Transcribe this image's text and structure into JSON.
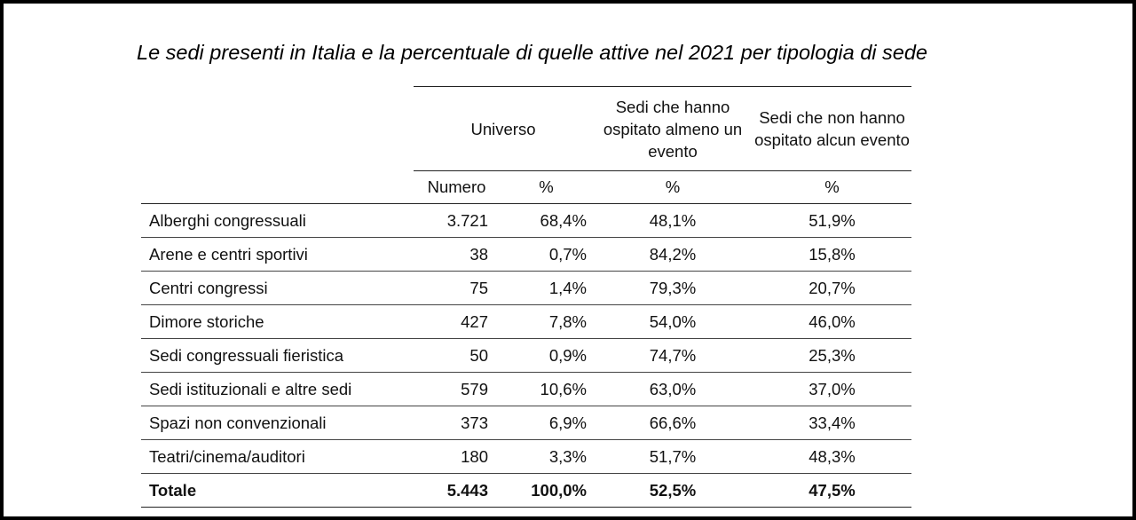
{
  "title": "Le sedi presenti in Italia e la percentuale di quelle attive nel 2021 per tipologia di sede",
  "header": {
    "universo": "Universo",
    "col_active": "Sedi che hanno ospitato almeno un evento",
    "col_inactive": "Sedi che non hanno ospitato alcun evento",
    "sub_numero": "Numero",
    "sub_pct1": "%",
    "sub_pct2": "%",
    "sub_pct3": "%"
  },
  "rows": [
    {
      "name": "Alberghi congressuali",
      "numero": "3.721",
      "pct": "68,4%",
      "active": "48,1%",
      "inactive": "51,9%"
    },
    {
      "name": "Arene e centri sportivi",
      "numero": "38",
      "pct": "0,7%",
      "active": "84,2%",
      "inactive": "15,8%"
    },
    {
      "name": "Centri congressi",
      "numero": "75",
      "pct": "1,4%",
      "active": "79,3%",
      "inactive": "20,7%"
    },
    {
      "name": "Dimore storiche",
      "numero": "427",
      "pct": "7,8%",
      "active": "54,0%",
      "inactive": "46,0%"
    },
    {
      "name": "Sedi congressuali fieristica",
      "numero": "50",
      "pct": "0,9%",
      "active": "74,7%",
      "inactive": "25,3%"
    },
    {
      "name": "Sedi istituzionali e altre sedi",
      "numero": "579",
      "pct": "10,6%",
      "active": "63,0%",
      "inactive": "37,0%"
    },
    {
      "name": "Spazi non convenzionali",
      "numero": "373",
      "pct": "6,9%",
      "active": "66,6%",
      "inactive": "33,4%"
    },
    {
      "name": "Teatri/cinema/auditori",
      "numero": "180",
      "pct": "3,3%",
      "active": "51,7%",
      "inactive": "48,3%"
    }
  ],
  "total": {
    "name": "Totale",
    "numero": "5.443",
    "pct": "100,0%",
    "active": "52,5%",
    "inactive": "47,5%"
  }
}
